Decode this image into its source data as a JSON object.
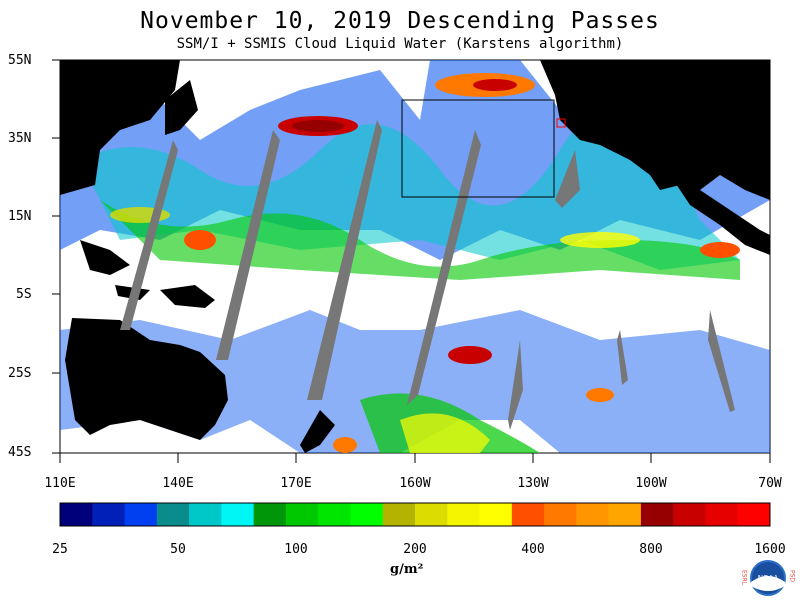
{
  "header": {
    "title": "November 10, 2019  Descending Passes",
    "subtitle": "SSM/I + SSMIS Cloud Liquid Water (Karstens algorithm)"
  },
  "axes": {
    "lat_labels": [
      "55N",
      "35N",
      "15N",
      "5S",
      "25S",
      "45S"
    ],
    "lon_labels": [
      "110E",
      "140E",
      "170E",
      "160W",
      "130W",
      "100W",
      "70W"
    ]
  },
  "colorbar": {
    "colors": [
      "#00007a",
      "#0020b8",
      "#0040f0",
      "#0a8c8c",
      "#00c8c8",
      "#00f5f5",
      "#00960a",
      "#00c800",
      "#00e600",
      "#00ff00",
      "#b4b400",
      "#dcdc00",
      "#f5f500",
      "#ffff00",
      "#ff5000",
      "#ff7800",
      "#ff9600",
      "#ffa500",
      "#960000",
      "#c80000",
      "#e60000",
      "#ff0000"
    ],
    "tick_labels": [
      "25",
      "50",
      "100",
      "200",
      "400",
      "800",
      "1600"
    ],
    "units": "g/m²"
  },
  "logo": {
    "left_letters": "ESRL",
    "right_letters": "PSD",
    "center_text": "NOAA"
  }
}
